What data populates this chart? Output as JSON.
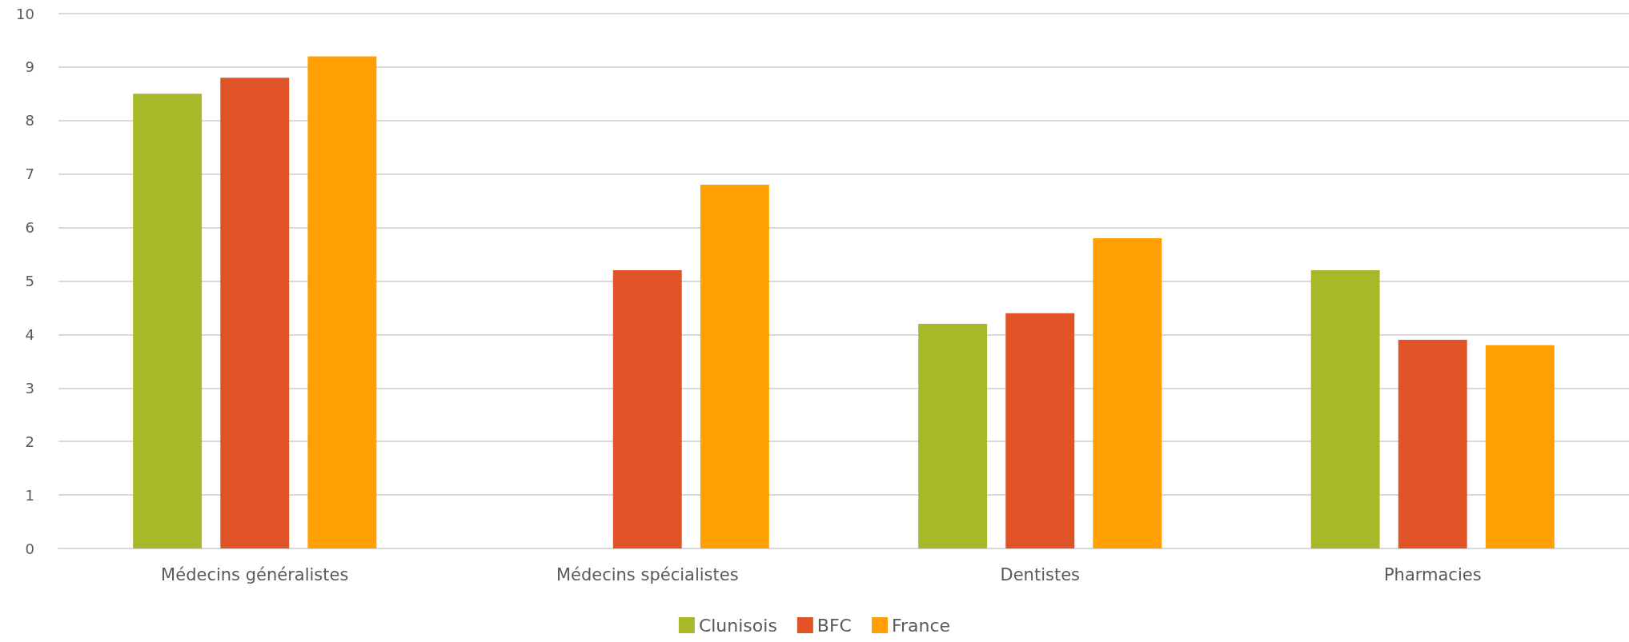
{
  "chart_data": {
    "type": "bar",
    "categories": [
      "Médecins généralistes",
      "Médecins spécialistes",
      "Dentistes",
      "Pharmacies"
    ],
    "series": [
      {
        "name": "Clunisois",
        "color": "#a7b829",
        "values": [
          8.5,
          null,
          4.2,
          5.2
        ]
      },
      {
        "name": "BFC",
        "color": "#e05327",
        "values": [
          8.8,
          5.2,
          4.4,
          3.9
        ]
      },
      {
        "name": "France",
        "color": "#ff9f03",
        "values": [
          9.2,
          6.8,
          5.8,
          3.8
        ]
      }
    ],
    "ylim": [
      0,
      10
    ],
    "yticks": [
      0,
      1,
      2,
      3,
      4,
      5,
      6,
      7,
      8,
      9,
      10
    ],
    "grid": "y",
    "legend": "bottom"
  }
}
